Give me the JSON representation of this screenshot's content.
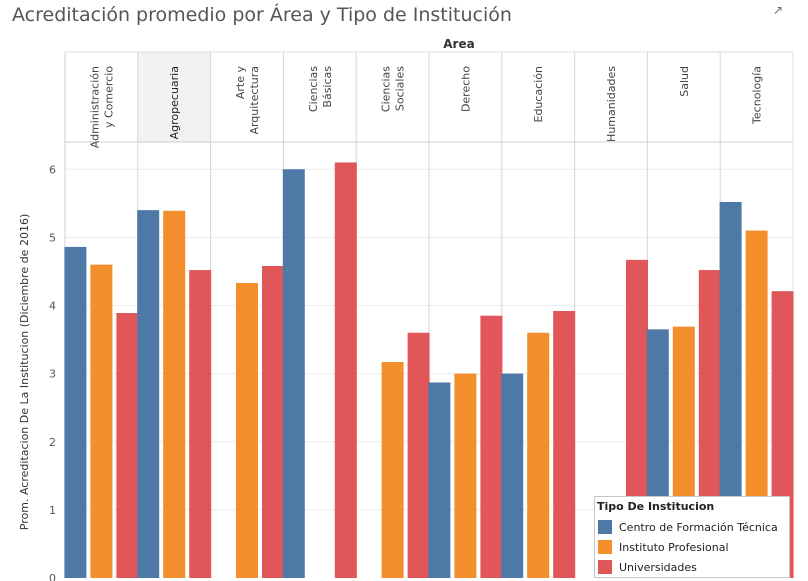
{
  "title": "Acreditación promedio por Área y Tipo de Institución",
  "icons": {
    "expand": "expand-icon"
  },
  "chart_data": {
    "type": "bar",
    "column_header": "Area",
    "categories": [
      "Administración y Comercio",
      "Agropecuaria",
      "Arte y Arquitectura",
      "Ciencias Básicas",
      "Ciencias Sociales",
      "Derecho",
      "Educación",
      "Humanidades",
      "Salud",
      "Tecnología"
    ],
    "category_label_lines": [
      [
        "Administración",
        "y Comercio"
      ],
      [
        "Agropecuaria"
      ],
      [
        "Arte y",
        "Arquitectura"
      ],
      [
        "Ciencias",
        "Básicas"
      ],
      [
        "Ciencias",
        "Sociales"
      ],
      [
        "Derecho"
      ],
      [
        "Educación"
      ],
      [
        "Humanidades"
      ],
      [
        "Salud"
      ],
      [
        "Tecnología"
      ]
    ],
    "highlighted_category": "Agropecuaria",
    "ylabel": "Prom. Acreditacion De La Institucion (Diciembre de 2016)",
    "ylim": [
      0,
      6.4
    ],
    "yticks": [
      0,
      1,
      2,
      3,
      4,
      5,
      6
    ],
    "series": [
      {
        "name": "Centro de Formación Técnica",
        "color": "#4e79a7",
        "values": [
          4.86,
          5.4,
          null,
          6.0,
          null,
          2.87,
          3.0,
          null,
          3.65,
          5.52
        ]
      },
      {
        "name": "Instituto Profesional",
        "color": "#f28e2b",
        "values": [
          4.6,
          5.39,
          4.33,
          null,
          3.17,
          3.0,
          3.6,
          null,
          3.69,
          5.1
        ]
      },
      {
        "name": "Universidades",
        "color": "#e15759",
        "values": [
          3.89,
          4.52,
          4.58,
          6.1,
          3.6,
          3.85,
          3.92,
          4.67,
          4.52,
          4.21
        ]
      }
    ],
    "legend": {
      "title": "Tipo De Institucion",
      "position": "bottom-right"
    }
  }
}
